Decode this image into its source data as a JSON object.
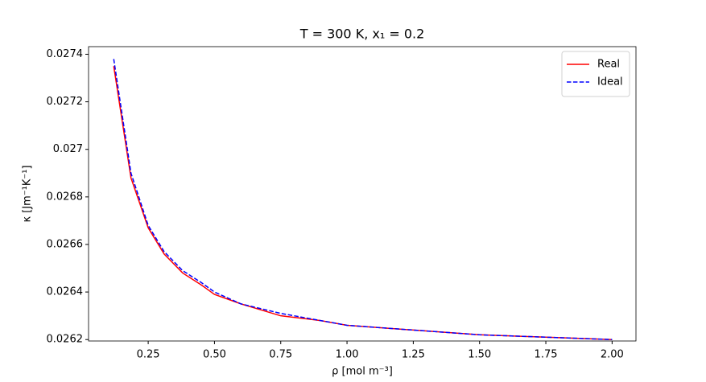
{
  "chart_data": {
    "type": "line",
    "title": "T = 300 K, x₁ = 0.2",
    "xlabel": "ρ [mol m⁻³]",
    "ylabel": "κ [Jm⁻¹K⁻¹]",
    "x": [
      0.12,
      0.185,
      0.25,
      0.31,
      0.38,
      0.45,
      0.5,
      0.6,
      0.75,
      0.9,
      1.0,
      1.25,
      1.5,
      1.75,
      2.0
    ],
    "series": [
      {
        "name": "Real",
        "color": "#ff0000",
        "linestyle": "solid",
        "values": [
          0.02735,
          0.02688,
          0.02667,
          0.02656,
          0.02648,
          0.02643,
          0.02639,
          0.02635,
          0.0263,
          0.02628,
          0.02626,
          0.02624,
          0.02622,
          0.02621,
          0.0262
        ]
      },
      {
        "name": "Ideal",
        "color": "#0000ff",
        "linestyle": "dashed",
        "values": [
          0.02738,
          0.0269,
          0.02668,
          0.02657,
          0.02649,
          0.02644,
          0.0264,
          0.02635,
          0.02631,
          0.02628,
          0.02626,
          0.02624,
          0.02622,
          0.02621,
          0.0262
        ]
      }
    ],
    "xlim": [
      0.025,
      2.09
    ],
    "ylim": [
      0.026194,
      0.027432
    ],
    "xticks": [
      {
        "value": 0.25,
        "label": "0.25"
      },
      {
        "value": 0.5,
        "label": "0.50"
      },
      0.75,
      {
        "value": 1,
        "label": "1.00"
      },
      1.25,
      {
        "value": 1.5,
        "label": "1.50"
      },
      1.75,
      {
        "value": 2,
        "label": "2.00"
      }
    ],
    "yticks": [
      0.0262,
      0.0264,
      0.0266,
      0.0268,
      0.027,
      0.0272,
      0.0274
    ],
    "grid": false,
    "legend": "upper right"
  }
}
